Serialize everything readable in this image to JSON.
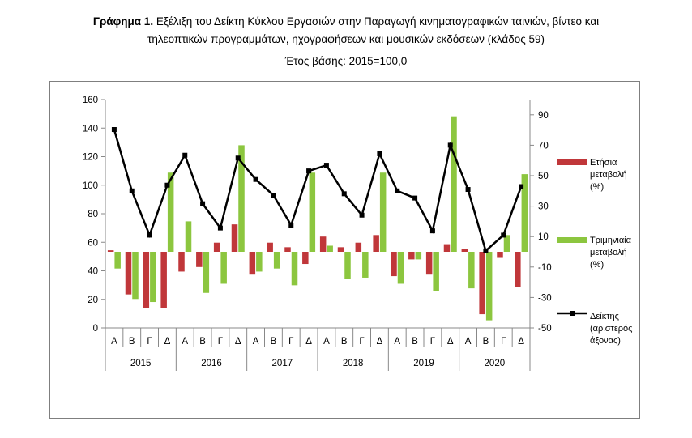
{
  "title_bold": "Γράφημα 1.",
  "title_line1": " Εξέλιξη του Δείκτη Κύκλου Εργασιών στην Παραγωγή κινηματογραφικών ταινιών, βίντεο και",
  "title_line2": "τηλεοπτικών προγραμμάτων, ηχογραφήσεων και μουσικών εκδόσεων (κλάδος 59)",
  "base_year": "Έτος βάσης: 2015=100,0",
  "colors": {
    "annual": "#c0373a",
    "quarterly": "#8cc63f",
    "index": "#000000"
  },
  "chart_data": {
    "type": "bar+line",
    "quarters": [
      "Α",
      "Β",
      "Γ",
      "Δ",
      "Α",
      "Β",
      "Γ",
      "Δ",
      "Α",
      "Β",
      "Γ",
      "Δ",
      "Α",
      "Β",
      "Γ",
      "Δ",
      "Α",
      "Β",
      "Γ",
      "Δ",
      "Α",
      "Β",
      "Γ",
      "Δ"
    ],
    "years": [
      "2015",
      "2016",
      "2017",
      "2018",
      "2019",
      "2020"
    ],
    "left_axis": {
      "ylim": [
        0,
        160
      ],
      "ticks": [
        "0",
        "20",
        "40",
        "60",
        "80",
        "100",
        "120",
        "140",
        "160"
      ]
    },
    "right_axis": {
      "ylim": [
        -50,
        100
      ],
      "ticks": [
        "-50",
        "-30",
        "-10",
        "10",
        "30",
        "50",
        "70",
        "90"
      ]
    },
    "legend_position": "right",
    "series": [
      {
        "name": "Ετήσια μεταβολή (%)",
        "axis": "right",
        "kind": "bar",
        "values": [
          1,
          -28,
          -37,
          -37,
          -13,
          -10,
          6,
          18,
          -15,
          6,
          3,
          -8,
          10,
          3,
          6,
          11,
          -16,
          -5,
          -15,
          5,
          2,
          -41,
          -4,
          -23
        ]
      },
      {
        "name": "Τριμηνιαία μεταβολή (%)",
        "axis": "right",
        "kind": "bar",
        "values": [
          -11,
          -31,
          -33,
          52,
          20,
          -27,
          -21,
          70,
          -13,
          -11,
          -22,
          52,
          4,
          -18,
          -17,
          52,
          -21,
          -5,
          -26,
          89,
          -24,
          -45,
          11,
          51
        ]
      },
      {
        "name": "Δείκτης (αριστερός άξονας)",
        "axis": "left",
        "kind": "line",
        "values": [
          139,
          96,
          65,
          100,
          121,
          87,
          70,
          119,
          104,
          93,
          72,
          110,
          114,
          94,
          79,
          122,
          96,
          91,
          68,
          128,
          97,
          54,
          65,
          99
        ]
      }
    ],
    "legend_labels": [
      [
        "Ετήσια",
        "μεταβολή",
        "(%)"
      ],
      [
        "Τριμηνιαία",
        "μεταβολή",
        "(%)"
      ],
      [
        "Δείκτης",
        "(αριστερός",
        "άξονας)"
      ]
    ]
  }
}
